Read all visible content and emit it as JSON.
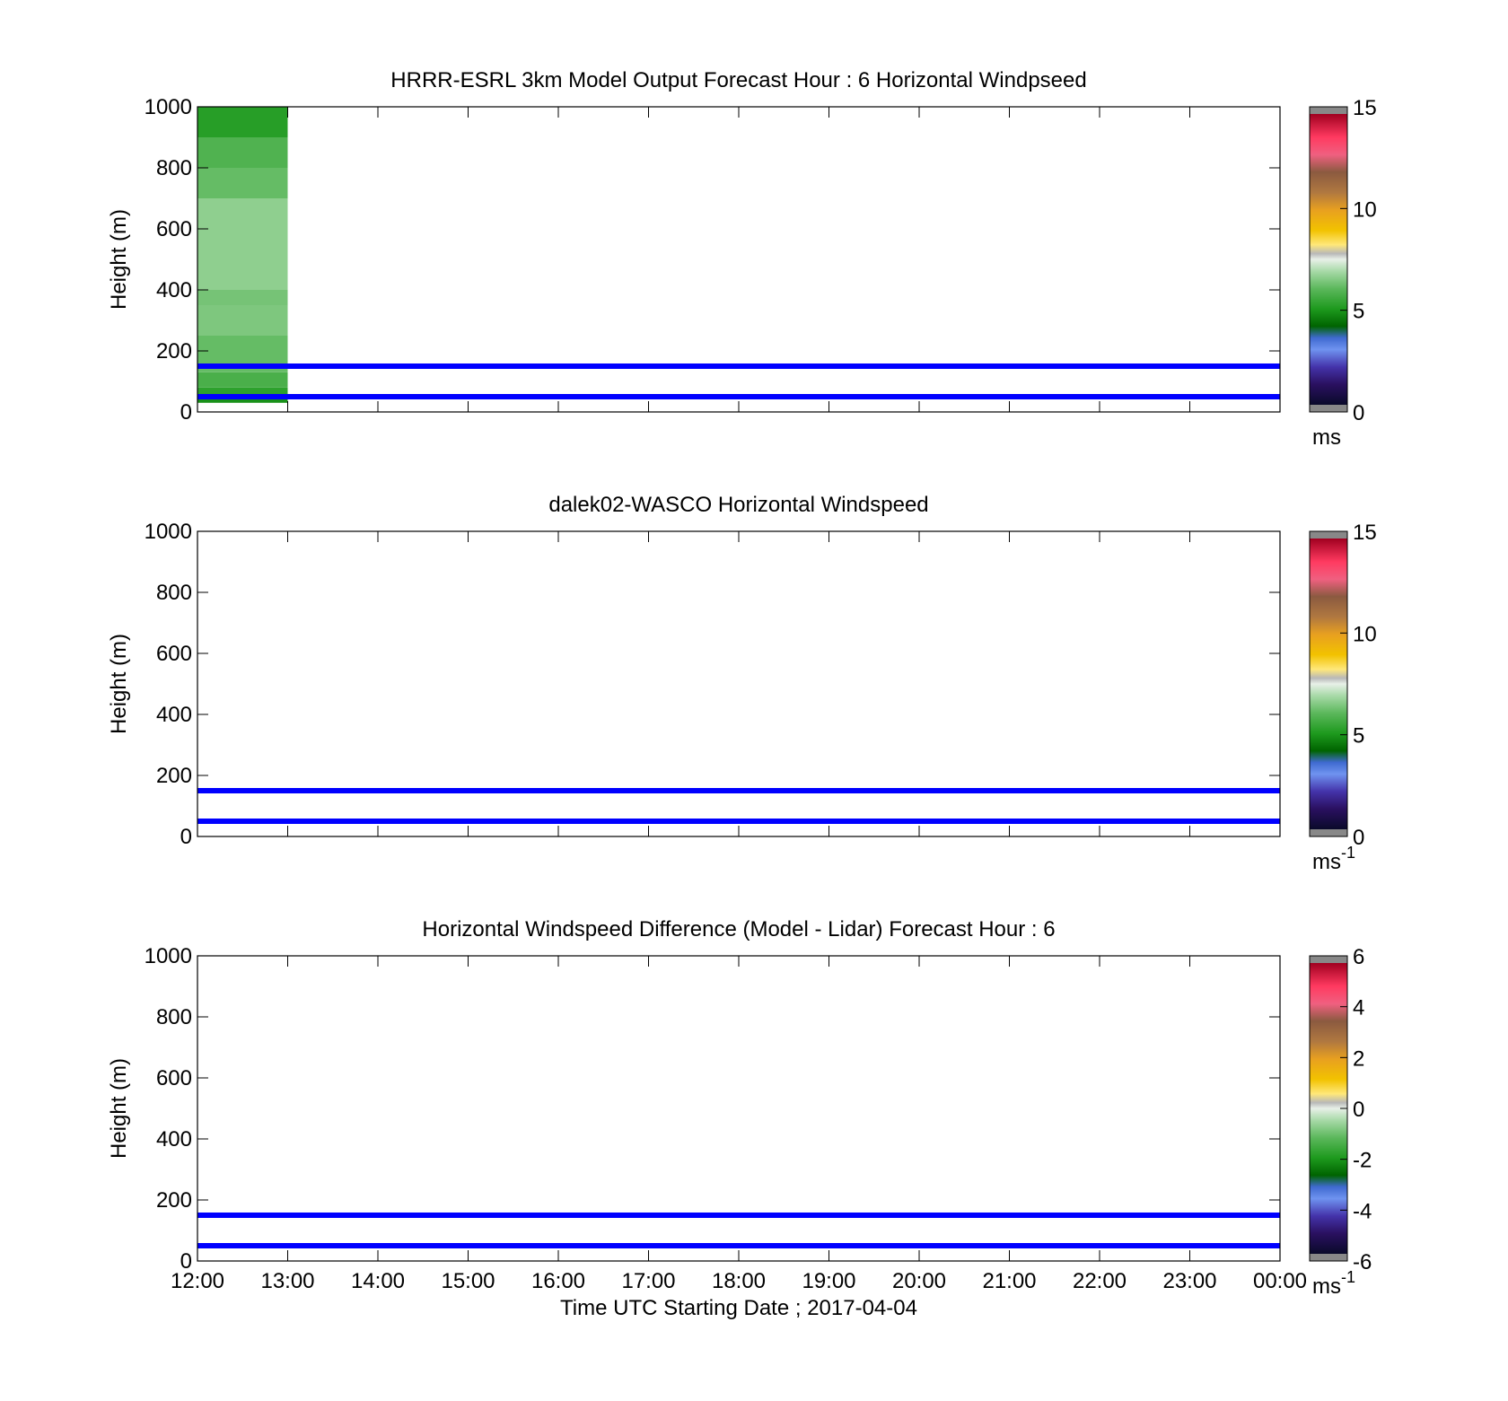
{
  "shared": {
    "ylabel": "Height (m)",
    "x_tick_labels": [
      "12:00",
      "13:00",
      "14:00",
      "15:00",
      "16:00",
      "17:00",
      "18:00",
      "19:00",
      "20:00",
      "21:00",
      "22:00",
      "23:00",
      "00:00"
    ],
    "xlabel": "Time UTC  Starting Date ; 2017-04-04",
    "reference_line_color": "#0000ff"
  },
  "chart_data": [
    {
      "type": "heatmap",
      "title": "HRRR-ESRL 3km Model Output   Forecast Hour : 6 Horizontal Windpseed",
      "ylabel": "Height (m)",
      "ylim": [
        0,
        1000
      ],
      "y_ticks": [
        0,
        200,
        400,
        600,
        800,
        1000
      ],
      "xlim_hours": [
        12,
        24
      ],
      "reference_lines_m": [
        50,
        150
      ],
      "colorbar": {
        "min": 0,
        "max": 15,
        "ticks": [
          0,
          5,
          10,
          15
        ],
        "unit_label": "ms",
        "unit_sup": ""
      },
      "cells": [
        {
          "t0": 12,
          "t1": 13,
          "h0": 30,
          "h1": 50,
          "value": 4.8
        },
        {
          "t0": 12,
          "t1": 13,
          "h0": 50,
          "h1": 80,
          "value": 5.2
        },
        {
          "t0": 12,
          "t1": 13,
          "h0": 80,
          "h1": 130,
          "value": 5.7
        },
        {
          "t0": 12,
          "t1": 13,
          "h0": 130,
          "h1": 250,
          "value": 6.1
        },
        {
          "t0": 12,
          "t1": 13,
          "h0": 250,
          "h1": 350,
          "value": 6.4
        },
        {
          "t0": 12,
          "t1": 13,
          "h0": 350,
          "h1": 400,
          "value": 6.3
        },
        {
          "t0": 12,
          "t1": 13,
          "h0": 400,
          "h1": 500,
          "value": 6.6
        },
        {
          "t0": 12,
          "t1": 13,
          "h0": 500,
          "h1": 700,
          "value": 6.6
        },
        {
          "t0": 12,
          "t1": 13,
          "h0": 700,
          "h1": 800,
          "value": 6.1
        },
        {
          "t0": 12,
          "t1": 13,
          "h0": 800,
          "h1": 900,
          "value": 5.8
        },
        {
          "t0": 12,
          "t1": 13,
          "h0": 900,
          "h1": 1000,
          "value": 5.1
        }
      ]
    },
    {
      "type": "heatmap",
      "title": "dalek02-WASCO  Horizontal Windspeed",
      "ylabel": "Height (m)",
      "ylim": [
        0,
        1000
      ],
      "y_ticks": [
        0,
        200,
        400,
        600,
        800,
        1000
      ],
      "xlim_hours": [
        12,
        24
      ],
      "reference_lines_m": [
        50,
        150
      ],
      "colorbar": {
        "min": 0,
        "max": 15,
        "ticks": [
          0,
          5,
          10,
          15
        ],
        "unit_label": "ms",
        "unit_sup": "-1"
      },
      "cells": []
    },
    {
      "type": "heatmap",
      "title": "Horizontal Windspeed Difference (Model - Lidar) Forecast Hour : 6",
      "ylabel": "Height (m)",
      "ylim": [
        0,
        1000
      ],
      "y_ticks": [
        0,
        200,
        400,
        600,
        800,
        1000
      ],
      "xlim_hours": [
        12,
        24
      ],
      "reference_lines_m": [
        50,
        150
      ],
      "colorbar": {
        "min": -6,
        "max": 6,
        "ticks": [
          -6,
          -4,
          -2,
          0,
          2,
          4,
          6
        ],
        "unit_label": "ms",
        "unit_sup": "-1"
      },
      "cells": []
    }
  ]
}
